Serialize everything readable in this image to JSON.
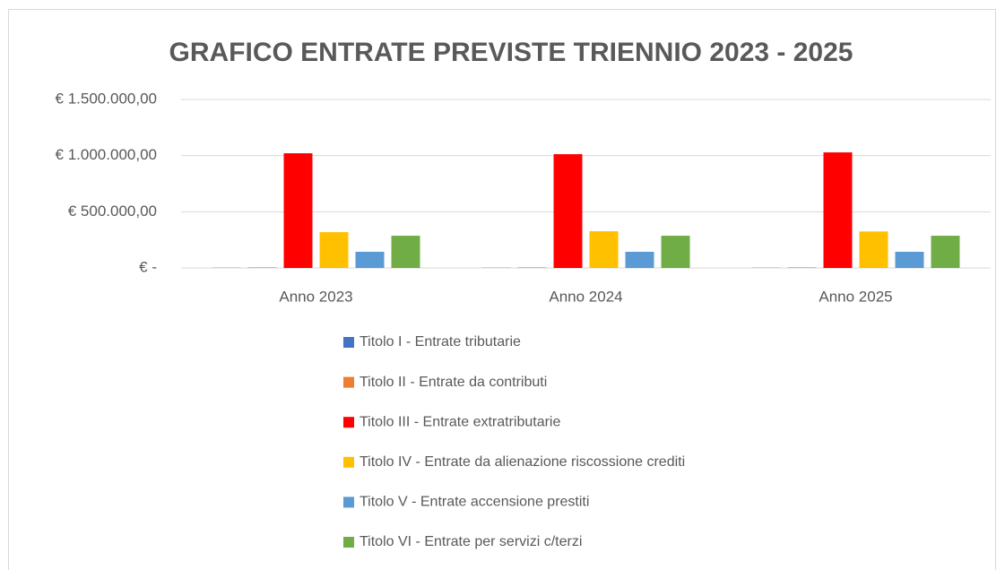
{
  "chart_data": {
    "type": "bar",
    "title": "GRAFICO ENTRATE PREVISTE TRIENNIO 2023 - 2025",
    "categories": [
      "Anno 2023",
      "Anno 2024",
      "Anno 2025"
    ],
    "series": [
      {
        "name": "Titolo I - Entrate tributarie",
        "color": "#4472c4",
        "values": [
          2000,
          2000,
          2000
        ]
      },
      {
        "name": "Titolo II - Entrate da contributi",
        "color": "#ed7d31",
        "values": [
          5000,
          5000,
          5000
        ]
      },
      {
        "name": "Titolo III - Entrate extratributarie",
        "color": "#ff0000",
        "values": [
          1021000,
          1013000,
          1029000
        ]
      },
      {
        "name": "Titolo IV - Entrate da alienazione riscossione crediti",
        "color": "#ffc000",
        "values": [
          319000,
          327000,
          325000
        ]
      },
      {
        "name": "Titolo V - Entrate accensione prestiti",
        "color": "#5b9bd5",
        "values": [
          144000,
          144000,
          144000
        ]
      },
      {
        "name": "Titolo VI - Entrate per servizi c/terzi",
        "color": "#70ad47",
        "values": [
          287000,
          287000,
          287000
        ]
      }
    ],
    "ylim": [
      0,
      1500000
    ],
    "yticks": [
      {
        "value": 0,
        "label": "€ -"
      },
      {
        "value": 500000,
        "label": "€ 500.000,00"
      },
      {
        "value": 1000000,
        "label": "€ 1.000.000,00"
      },
      {
        "value": 1500000,
        "label": "€ 1.500.000,00"
      }
    ],
    "grid": true,
    "legend": "bottom"
  }
}
